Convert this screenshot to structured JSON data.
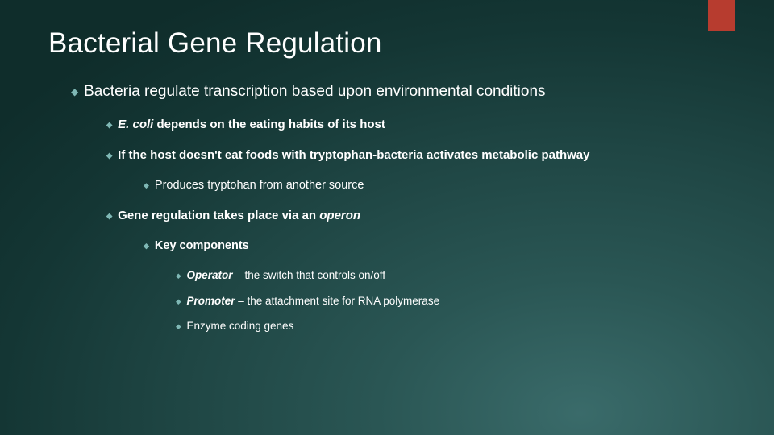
{
  "accent_color": "#b73c2f",
  "background_gradient": {
    "type": "radial",
    "center": "75% 95%",
    "stops": [
      "#3a6b6a",
      "#2a5654",
      "#1f4644",
      "#143634",
      "#0f2d2b"
    ]
  },
  "bullet_color": "#7fb8b5",
  "bullet_glyph": "◆",
  "text_color": "#ffffff",
  "title": "Bacterial Gene Regulation",
  "title_fontsize": 35,
  "body": {
    "lvl1_fontsize": 19,
    "lvl2_fontsize": 15,
    "lvl3_fontsize": 14.5,
    "lvl4_fontsize": 13.5,
    "p1": "Bacteria regulate transcription based upon environmental conditions",
    "p2_italic": "E. coli",
    "p2_rest": " depends on the eating habits of its host",
    "p3": "If the host doesn't eat foods with tryptophan-bacteria activates metabolic pathway",
    "p4": "Produces tryptohan from another source",
    "p5_a": "Gene regulation takes place via an ",
    "p5_b": "operon",
    "p6": "Key components",
    "p7_b": "Operator",
    "p7_r": " – the switch that controls on/off",
    "p8_b": "Promoter",
    "p8_r": " – the attachment site for RNA polymerase",
    "p9": "Enzyme coding genes"
  }
}
